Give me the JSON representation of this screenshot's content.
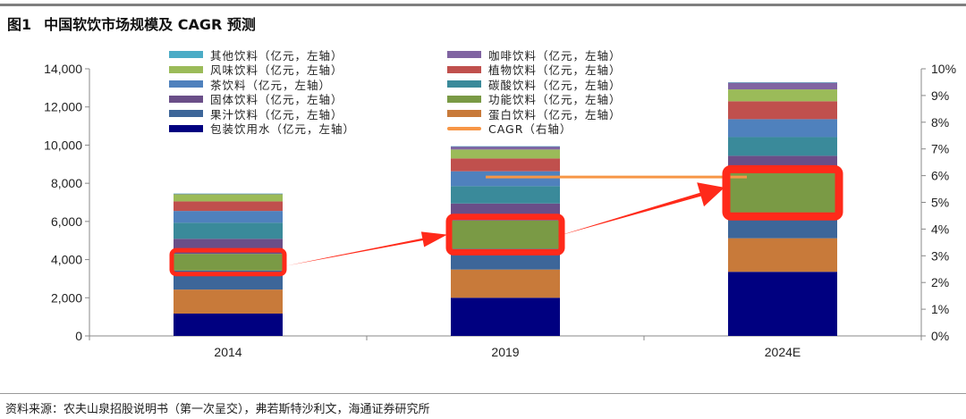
{
  "title": {
    "fig": "图1",
    "text": "中国软饮市场规模及 CAGR 预测"
  },
  "footer": "资料来源：农夫山泉招股说明书（第一次呈交），弗若斯特沙利文，海通证券研究所",
  "chart_data": {
    "type": "bar",
    "stacked": true,
    "categories": [
      "2014",
      "2019",
      "2024E"
    ],
    "ylim": [
      0,
      14000
    ],
    "yticks": [
      "0",
      "2,000",
      "4,000",
      "6,000",
      "8,000",
      "10,000",
      "12,000",
      "14,000"
    ],
    "y2lim": [
      0,
      10
    ],
    "y2ticks": [
      "0%",
      "1%",
      "2%",
      "3%",
      "4%",
      "5%",
      "6%",
      "7%",
      "8%",
      "9%",
      "10%"
    ],
    "series": [
      {
        "name": "包装饮用水（亿元，左轴）",
        "color": "#000080",
        "values": [
          1170,
          2000,
          3360
        ]
      },
      {
        "name": "蛋白饮料（亿元，左轴）",
        "color": "#c87a3a",
        "values": [
          1260,
          1480,
          1760
        ]
      },
      {
        "name": "果汁饮料（亿元，左轴）",
        "color": "#3d6699",
        "values": [
          1000,
          1090,
          1330
        ]
      },
      {
        "name": "功能饮料（亿元，左轴）",
        "color": "#7a9a45",
        "values": [
          870,
          1480,
          2100
        ]
      },
      {
        "name": "固体饮料（亿元，左轴）",
        "color": "#6a4e88",
        "values": [
          790,
          890,
          890
        ]
      },
      {
        "name": "碳酸饮料（亿元，左轴）",
        "color": "#3a8a9a",
        "values": [
          840,
          910,
          980
        ]
      },
      {
        "name": "茶饮料（亿元，左轴）",
        "color": "#4f81bd",
        "values": [
          620,
          780,
          940
        ]
      },
      {
        "name": "植物饮料（亿元，左轴）",
        "color": "#c0504d",
        "values": [
          500,
          670,
          940
        ]
      },
      {
        "name": "风味饮料（亿元，左轴）",
        "color": "#9bbb59",
        "values": [
          380,
          470,
          620
        ]
      },
      {
        "name": "咖啡饮料（亿元，左轴）",
        "color": "#8064a2",
        "values": [
          20,
          160,
          360
        ]
      },
      {
        "name": "其他饮料（亿元，左轴）",
        "color": "#4bacc6",
        "values": [
          10,
          10,
          10
        ]
      }
    ],
    "cagr": {
      "name": "CAGR（右轴）",
      "color": "#f79646",
      "from": "2019",
      "to": "2024E",
      "value": 5.95
    },
    "highlight": {
      "series": "功能饮料（亿元，左轴）",
      "color": "#ff2a1a"
    }
  }
}
